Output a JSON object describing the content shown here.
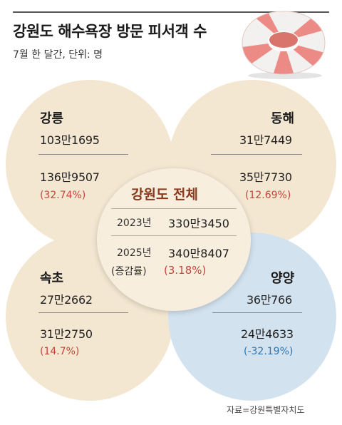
{
  "title": "강원도 해수욕장 방문 피서객 수",
  "subtitle": "7월 한 달간, 단위: 명",
  "source": "자료=강원특별자치도",
  "colors": {
    "beige": "#f3e7d2",
    "blue": "#d3e2ef",
    "red_text": "#c4453a",
    "blue_text": "#2a76b3",
    "center_title": "#8a3a1e"
  },
  "chart_data": {
    "type": "table",
    "title": "강원도 해수욕장 방문 피서객 수",
    "subtitle": "7월 한 달간, 단위: 명",
    "regions": [
      {
        "name": "강릉",
        "value_2023": "103만1695",
        "value_2025": "136만9507",
        "change": "(32.74%)",
        "visitors_2023": 1031695,
        "visitors_2025": 1369507,
        "change_pct": 32.74
      },
      {
        "name": "동해",
        "value_2023": "31만7449",
        "value_2025": "35만7730",
        "change": "(12.69%)",
        "visitors_2023": 317449,
        "visitors_2025": 357730,
        "change_pct": 12.69
      },
      {
        "name": "속초",
        "value_2023": "27만2662",
        "value_2025": "31만2750",
        "change": "(14.7%)",
        "visitors_2023": 272662,
        "visitors_2025": 312750,
        "change_pct": 14.7
      },
      {
        "name": "양양",
        "value_2023": "36만766",
        "value_2025": "24만4633",
        "change": "(-32.19%)",
        "visitors_2023": 360766,
        "visitors_2025": 244633,
        "change_pct": -32.19
      }
    ],
    "total": {
      "name": "강원도 전체",
      "year1_label": "2023년",
      "year1_value": "330만3450",
      "year2_label": "2025년",
      "year2_value": "340만8407",
      "change_label": "(증감률)",
      "change": "(3.18%)",
      "visitors_2023": 3303450,
      "visitors_2025": 3408407,
      "change_pct": 3.18
    }
  }
}
